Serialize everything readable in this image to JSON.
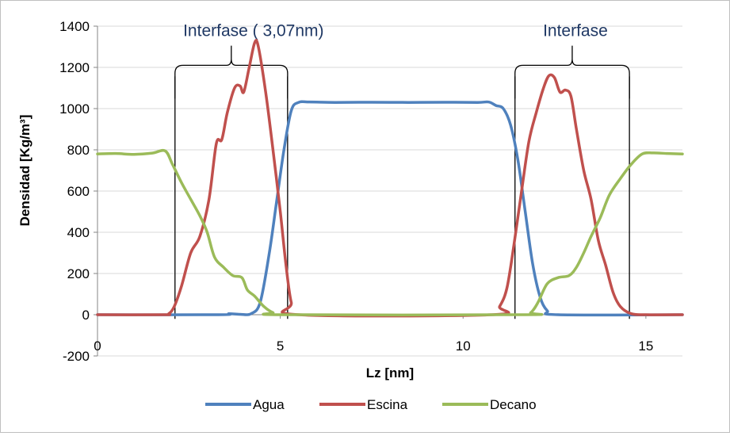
{
  "chart_data": {
    "type": "line",
    "title": "",
    "xlabel": "Lz [nm]",
    "ylabel": "Densidad [Kg/m³]",
    "xlim": [
      0,
      16
    ],
    "ylim": [
      -200,
      1400
    ],
    "xticks": [
      0,
      5,
      10,
      15
    ],
    "yticks": [
      -200,
      0,
      200,
      400,
      600,
      800,
      1000,
      1200,
      1400
    ],
    "x_tick_labels": [
      "0",
      "5",
      "10",
      "15"
    ],
    "y_tick_labels": [
      "-200",
      "0",
      "200",
      "400",
      "600",
      "800",
      "1000",
      "1200",
      "1400"
    ],
    "grid": "horizontal",
    "legend_position": "bottom",
    "series": [
      {
        "name": "Agua",
        "color": "#4f81bd",
        "points": [
          [
            0,
            0
          ],
          [
            3.3,
            0
          ],
          [
            3.6,
            5
          ],
          [
            3.9,
            2
          ],
          [
            4.2,
            5
          ],
          [
            4.45,
            60
          ],
          [
            4.7,
            300
          ],
          [
            4.9,
            550
          ],
          [
            5.1,
            800
          ],
          [
            5.3,
            990
          ],
          [
            5.5,
            1030
          ],
          [
            5.8,
            1032
          ],
          [
            6.5,
            1030
          ],
          [
            7.5,
            1031
          ],
          [
            8.5,
            1030
          ],
          [
            9.5,
            1031
          ],
          [
            10.4,
            1030
          ],
          [
            10.7,
            1032
          ],
          [
            10.9,
            1015
          ],
          [
            11.1,
            1000
          ],
          [
            11.3,
            920
          ],
          [
            11.5,
            750
          ],
          [
            11.7,
            500
          ],
          [
            11.9,
            250
          ],
          [
            12.1,
            90
          ],
          [
            12.3,
            20
          ],
          [
            12.6,
            0
          ],
          [
            16,
            0
          ]
        ]
      },
      {
        "name": "Escina",
        "color": "#c0504d",
        "points": [
          [
            0,
            0
          ],
          [
            1.8,
            0
          ],
          [
            1.95,
            5
          ],
          [
            2.1,
            40
          ],
          [
            2.3,
            140
          ],
          [
            2.55,
            300
          ],
          [
            2.8,
            380
          ],
          [
            3.05,
            560
          ],
          [
            3.25,
            830
          ],
          [
            3.4,
            850
          ],
          [
            3.55,
            980
          ],
          [
            3.75,
            1100
          ],
          [
            3.9,
            1110
          ],
          [
            4.0,
            1080
          ],
          [
            4.15,
            1200
          ],
          [
            4.3,
            1320
          ],
          [
            4.4,
            1300
          ],
          [
            4.6,
            1080
          ],
          [
            4.8,
            800
          ],
          [
            5.0,
            500
          ],
          [
            5.15,
            250
          ],
          [
            5.3,
            60
          ],
          [
            5.5,
            0
          ],
          [
            10.8,
            0
          ],
          [
            11.0,
            40
          ],
          [
            11.2,
            130
          ],
          [
            11.4,
            350
          ],
          [
            11.6,
            600
          ],
          [
            11.8,
            840
          ],
          [
            12.0,
            980
          ],
          [
            12.2,
            1100
          ],
          [
            12.35,
            1160
          ],
          [
            12.5,
            1150
          ],
          [
            12.65,
            1080
          ],
          [
            12.8,
            1090
          ],
          [
            12.95,
            1060
          ],
          [
            13.1,
            900
          ],
          [
            13.3,
            700
          ],
          [
            13.5,
            560
          ],
          [
            13.7,
            360
          ],
          [
            13.9,
            240
          ],
          [
            14.1,
            110
          ],
          [
            14.3,
            40
          ],
          [
            14.6,
            5
          ],
          [
            15,
            0
          ],
          [
            16,
            0
          ]
        ]
      },
      {
        "name": "Decano",
        "color": "#9bbb59",
        "points": [
          [
            0,
            780
          ],
          [
            0.5,
            782
          ],
          [
            1.0,
            778
          ],
          [
            1.5,
            784
          ],
          [
            1.85,
            795
          ],
          [
            2.05,
            730
          ],
          [
            2.3,
            640
          ],
          [
            2.55,
            560
          ],
          [
            2.8,
            480
          ],
          [
            3.0,
            400
          ],
          [
            3.2,
            280
          ],
          [
            3.45,
            230
          ],
          [
            3.7,
            190
          ],
          [
            3.95,
            180
          ],
          [
            4.1,
            120
          ],
          [
            4.3,
            90
          ],
          [
            4.55,
            40
          ],
          [
            4.8,
            10
          ],
          [
            5.1,
            0
          ],
          [
            11.6,
            0
          ],
          [
            11.85,
            10
          ],
          [
            12.05,
            60
          ],
          [
            12.3,
            150
          ],
          [
            12.6,
            180
          ],
          [
            12.9,
            190
          ],
          [
            13.1,
            230
          ],
          [
            13.3,
            300
          ],
          [
            13.5,
            380
          ],
          [
            13.75,
            470
          ],
          [
            14.0,
            580
          ],
          [
            14.3,
            660
          ],
          [
            14.6,
            730
          ],
          [
            14.9,
            780
          ],
          [
            15.2,
            785
          ],
          [
            15.6,
            782
          ],
          [
            16,
            780
          ]
        ]
      }
    ],
    "annotations": [
      {
        "text": "Interfase ( 3,07nm)",
        "x_start": 2.12,
        "x_end": 5.2,
        "brace_y": 1210,
        "label_y": 1390
      },
      {
        "text": "Interfase",
        "x_start": 11.42,
        "x_end": 14.55,
        "brace_y": 1210,
        "label_y": 1390
      }
    ]
  }
}
